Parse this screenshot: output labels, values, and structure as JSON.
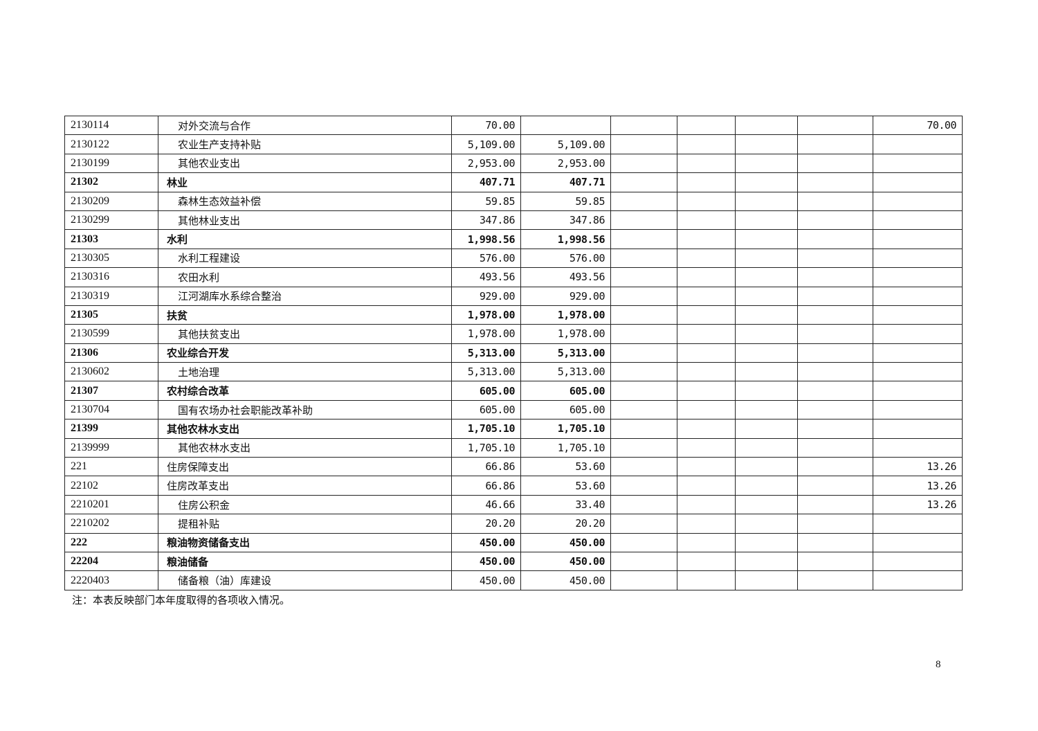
{
  "rows": [
    {
      "code": "2130114",
      "name": "对外交流与合作",
      "level": 3,
      "bold": false,
      "c1": "70.00",
      "c2": "",
      "c9": "70.00"
    },
    {
      "code": "2130122",
      "name": "农业生产支持补贴",
      "level": 3,
      "bold": false,
      "c1": "5,109.00",
      "c2": "5,109.00",
      "c9": ""
    },
    {
      "code": "2130199",
      "name": "其他农业支出",
      "level": 3,
      "bold": false,
      "c1": "2,953.00",
      "c2": "2,953.00",
      "c9": ""
    },
    {
      "code": "21302",
      "name": "林业",
      "level": 2,
      "bold": true,
      "c1": "407.71",
      "c2": "407.71",
      "c9": ""
    },
    {
      "code": "2130209",
      "name": "森林生态效益补偿",
      "level": 3,
      "bold": false,
      "c1": "59.85",
      "c2": "59.85",
      "c9": ""
    },
    {
      "code": "2130299",
      "name": "其他林业支出",
      "level": 3,
      "bold": false,
      "c1": "347.86",
      "c2": "347.86",
      "c9": ""
    },
    {
      "code": "21303",
      "name": "水利",
      "level": 2,
      "bold": true,
      "c1": "1,998.56",
      "c2": "1,998.56",
      "c9": ""
    },
    {
      "code": "2130305",
      "name": "水利工程建设",
      "level": 3,
      "bold": false,
      "c1": "576.00",
      "c2": "576.00",
      "c9": ""
    },
    {
      "code": "2130316",
      "name": "农田水利",
      "level": 3,
      "bold": false,
      "c1": "493.56",
      "c2": "493.56",
      "c9": ""
    },
    {
      "code": "2130319",
      "name": "江河湖库水系综合整治",
      "level": 3,
      "bold": false,
      "c1": "929.00",
      "c2": "929.00",
      "c9": ""
    },
    {
      "code": "21305",
      "name": "扶贫",
      "level": 2,
      "bold": true,
      "c1": "1,978.00",
      "c2": "1,978.00",
      "c9": ""
    },
    {
      "code": "2130599",
      "name": "其他扶贫支出",
      "level": 3,
      "bold": false,
      "c1": "1,978.00",
      "c2": "1,978.00",
      "c9": ""
    },
    {
      "code": "21306",
      "name": "农业综合开发",
      "level": 2,
      "bold": true,
      "c1": "5,313.00",
      "c2": "5,313.00",
      "c9": ""
    },
    {
      "code": "2130602",
      "name": "土地治理",
      "level": 3,
      "bold": false,
      "c1": "5,313.00",
      "c2": "5,313.00",
      "c9": ""
    },
    {
      "code": "21307",
      "name": "农村综合改革",
      "level": 2,
      "bold": true,
      "c1": "605.00",
      "c2": "605.00",
      "c9": ""
    },
    {
      "code": "2130704",
      "name": "国有农场办社会职能改革补助",
      "level": 3,
      "bold": false,
      "c1": "605.00",
      "c2": "605.00",
      "c9": ""
    },
    {
      "code": "21399",
      "name": "其他农林水支出",
      "level": 2,
      "bold": true,
      "c1": "1,705.10",
      "c2": "1,705.10",
      "c9": ""
    },
    {
      "code": "2139999",
      "name": "其他农林水支出",
      "level": 3,
      "bold": false,
      "c1": "1,705.10",
      "c2": "1,705.10",
      "c9": ""
    },
    {
      "code": "221",
      "name": "住房保障支出",
      "level": 1,
      "bold": false,
      "c1": "66.86",
      "c2": "53.60",
      "c9": "13.26"
    },
    {
      "code": "22102",
      "name": "住房改革支出",
      "level": 2,
      "bold": false,
      "c1": "66.86",
      "c2": "53.60",
      "c9": "13.26"
    },
    {
      "code": "2210201",
      "name": "住房公积金",
      "level": 3,
      "bold": false,
      "c1": "46.66",
      "c2": "33.40",
      "c9": "13.26"
    },
    {
      "code": "2210202",
      "name": "提租补贴",
      "level": 3,
      "bold": false,
      "c1": "20.20",
      "c2": "20.20",
      "c9": ""
    },
    {
      "code": "222",
      "name": "粮油物资储备支出",
      "level": 1,
      "bold": true,
      "c1": "450.00",
      "c2": "450.00",
      "c9": ""
    },
    {
      "code": "22204",
      "name": "粮油储备",
      "level": 2,
      "bold": true,
      "c1": "450.00",
      "c2": "450.00",
      "c9": ""
    },
    {
      "code": "2220403",
      "name": "储备粮（油）库建设",
      "level": 3,
      "bold": false,
      "c1": "450.00",
      "c2": "450.00",
      "c9": ""
    }
  ],
  "note": "注：本表反映部门本年度取得的各项收入情况。",
  "page_number": "8"
}
